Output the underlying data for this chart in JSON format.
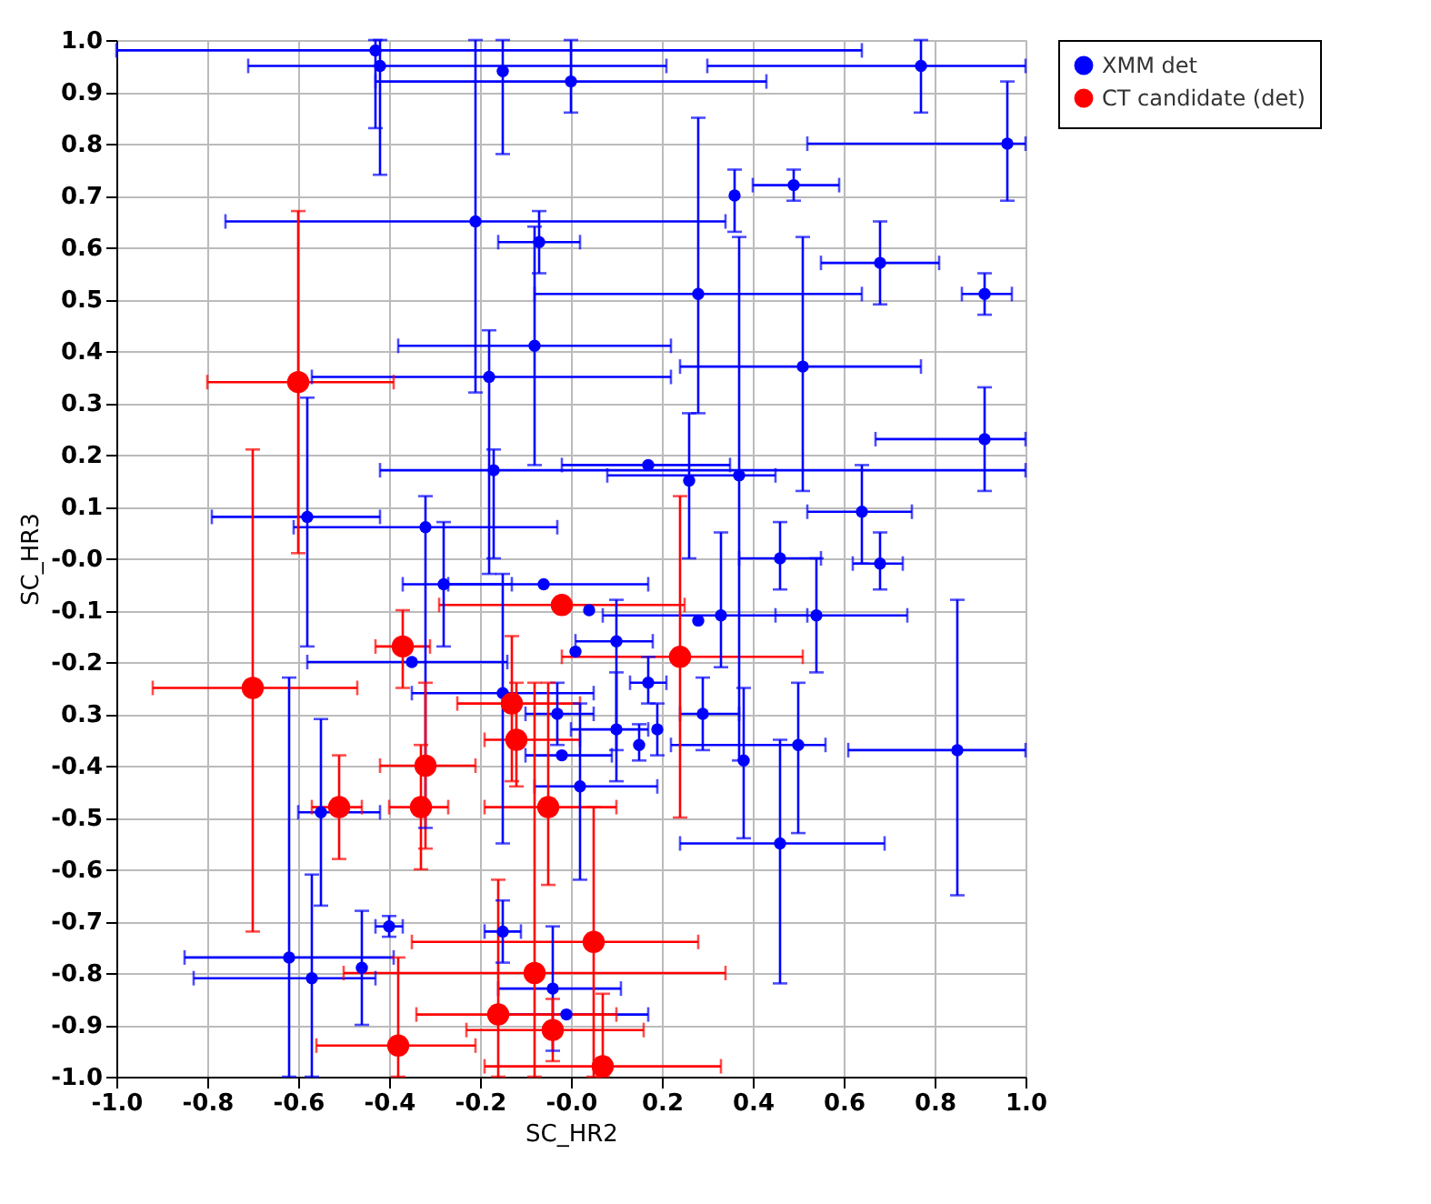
{
  "chart_data": {
    "type": "scatter",
    "xlabel": "SC_HR2",
    "ylabel": "SC_HR3",
    "xlim": [
      -1.0,
      1.0
    ],
    "ylim": [
      -1.0,
      1.0
    ],
    "xticks": [
      {
        "value": -1,
        "label": "-1.0"
      },
      -0.8,
      -0.6,
      -0.4,
      -0.2,
      {
        "value": 0,
        "label": "-0.0"
      },
      0.2,
      0.4,
      0.6,
      0.8,
      {
        "value": 1,
        "label": "1.0"
      }
    ],
    "yticks": [
      {
        "value": -1,
        "label": "-1.0"
      },
      -0.9,
      -0.8,
      -0.7,
      -0.6,
      -0.5,
      -0.4,
      {
        "value": -0.3,
        "label": "0.3"
      },
      -0.2,
      -0.1,
      {
        "value": 0,
        "label": "-0.0"
      },
      0.1,
      0.2,
      0.3,
      0.4,
      0.5,
      0.6,
      0.7,
      0.8,
      0.9,
      {
        "value": 1,
        "label": "1.0"
      }
    ],
    "grid": true,
    "legend": "top right",
    "marker": "circle",
    "series": [
      {
        "name": "XMM det",
        "color": "#0000ff",
        "x": [
          -0.43,
          -0.42,
          -0.15,
          0.0,
          0.77,
          0.96,
          -0.21,
          -0.07,
          0.36,
          0.49,
          0.68,
          0.91,
          0.28,
          -0.08,
          0.51,
          -0.18,
          0.91,
          -0.17,
          0.17,
          0.37,
          0.26,
          0.64,
          0.68,
          0.46,
          -0.58,
          -0.32,
          -0.28,
          -0.06,
          0.04,
          0.1,
          0.01,
          0.33,
          0.28,
          0.54,
          0.17,
          -0.35,
          -0.15,
          -0.03,
          0.29,
          0.1,
          0.15,
          0.19,
          0.38,
          0.5,
          0.85,
          0.46,
          0.02,
          -0.02,
          -0.55,
          -0.4,
          -0.62,
          -0.57,
          -0.46,
          -0.15,
          -0.04,
          -0.01
        ],
        "values": [
          0.98,
          0.95,
          0.94,
          0.92,
          0.95,
          0.8,
          0.65,
          0.61,
          0.7,
          0.72,
          0.57,
          0.51,
          0.51,
          0.41,
          0.37,
          0.35,
          0.23,
          0.17,
          0.18,
          0.16,
          0.15,
          0.09,
          -0.01,
          0.0,
          0.08,
          0.06,
          -0.05,
          -0.05,
          -0.1,
          -0.16,
          -0.18,
          -0.11,
          -0.12,
          -0.11,
          -0.24,
          -0.2,
          -0.26,
          -0.3,
          -0.3,
          -0.33,
          -0.36,
          -0.33,
          -0.39,
          -0.36,
          -0.37,
          -0.55,
          -0.44,
          -0.38,
          -0.49,
          -0.71,
          -0.77,
          -0.81,
          -0.79,
          -0.72,
          -0.83,
          -0.88
        ],
        "xerrors": [
          [
            -1.0,
            0.64
          ],
          [
            -0.71,
            0.21
          ],
          null,
          [
            -0.43,
            0.43
          ],
          [
            0.3,
            1.0
          ],
          [
            0.52,
            1.0
          ],
          [
            -0.76,
            0.34
          ],
          [
            -0.16,
            0.02
          ],
          null,
          [
            0.4,
            0.59
          ],
          [
            0.55,
            0.81
          ],
          [
            0.86,
            0.97
          ],
          [
            -0.08,
            0.64
          ],
          [
            -0.38,
            0.22
          ],
          [
            0.24,
            0.77
          ],
          [
            -0.57,
            0.22
          ],
          [
            0.67,
            1.0
          ],
          [
            -0.42,
            1.0
          ],
          [
            -0.02,
            0.35
          ],
          [
            0.08,
            0.45
          ],
          null,
          [
            0.52,
            0.75
          ],
          [
            0.62,
            0.73
          ],
          [
            0.37,
            0.55
          ],
          [
            -0.79,
            -0.42
          ],
          [
            -0.61,
            -0.03
          ],
          [
            -0.37,
            -0.13
          ],
          [
            -0.27,
            0.17
          ],
          null,
          [
            0.01,
            0.18
          ],
          null,
          [
            0.07,
            0.52
          ],
          null,
          [
            0.45,
            0.74
          ],
          [
            0.13,
            0.21
          ],
          [
            -0.58,
            -0.14
          ],
          [
            -0.35,
            0.05
          ],
          [
            -0.1,
            0.05
          ],
          [
            0.24,
            0.37
          ],
          [
            0.0,
            0.17
          ],
          null,
          null,
          null,
          [
            0.22,
            0.56
          ],
          [
            0.61,
            1.0
          ],
          [
            0.24,
            0.69
          ],
          [
            -0.08,
            0.19
          ],
          [
            -0.1,
            0.09
          ],
          [
            -0.6,
            -0.42
          ],
          [
            -0.43,
            -0.37
          ],
          [
            -0.85,
            -0.39
          ],
          [
            -0.83,
            -0.43
          ],
          null,
          [
            -0.19,
            -0.11
          ],
          [
            -0.16,
            0.11
          ],
          [
            -0.17,
            0.17
          ]
        ],
        "errors": [
          [
            0.83,
            1.0
          ],
          [
            0.74,
            1.0
          ],
          [
            0.78,
            1.0
          ],
          [
            0.86,
            1.0
          ],
          [
            0.86,
            1.0
          ],
          [
            0.69,
            0.92
          ],
          [
            0.32,
            1.0
          ],
          [
            0.55,
            0.67
          ],
          [
            0.63,
            0.75
          ],
          [
            0.69,
            0.75
          ],
          [
            0.49,
            0.65
          ],
          [
            0.47,
            0.55
          ],
          [
            0.28,
            0.85
          ],
          [
            0.18,
            0.64
          ],
          [
            0.13,
            0.62
          ],
          [
            -0.03,
            0.44
          ],
          [
            0.13,
            0.33
          ],
          [
            0.0,
            0.21
          ],
          null,
          [
            -0.39,
            0.62
          ],
          [
            0.0,
            0.28
          ],
          [
            -0.01,
            0.18
          ],
          [
            -0.06,
            0.05
          ],
          [
            -0.06,
            0.07
          ],
          [
            -0.17,
            0.31
          ],
          [
            -0.52,
            0.12
          ],
          [
            -0.17,
            0.07
          ],
          null,
          null,
          [
            -0.37,
            -0.08
          ],
          null,
          [
            -0.21,
            0.05
          ],
          null,
          [
            -0.22,
            0.0
          ],
          [
            -0.28,
            -0.19
          ],
          null,
          [
            -0.55,
            -0.03
          ],
          [
            -0.36,
            -0.24
          ],
          [
            -0.37,
            -0.23
          ],
          [
            -0.43,
            -0.22
          ],
          [
            -0.39,
            -0.32
          ],
          [
            -0.38,
            -0.28
          ],
          [
            -0.54,
            -0.25
          ],
          [
            -0.53,
            -0.24
          ],
          [
            -0.65,
            -0.08
          ],
          [
            -0.82,
            -0.35
          ],
          [
            -0.62,
            -0.28
          ],
          null,
          [
            -0.67,
            -0.31
          ],
          [
            -0.73,
            -0.69
          ],
          [
            -1.0,
            -0.23
          ],
          [
            -1.0,
            -0.61
          ],
          [
            -0.9,
            -0.68
          ],
          [
            -0.78,
            -0.66
          ],
          [
            -0.95,
            -0.71
          ],
          null
        ]
      },
      {
        "name": "CT candidate (det)",
        "color": "#ff0000",
        "x": [
          -0.6,
          -0.7,
          -0.37,
          -0.51,
          -0.32,
          -0.33,
          -0.13,
          -0.12,
          -0.05,
          -0.02,
          0.24,
          0.05,
          -0.08,
          -0.16,
          -0.04,
          -0.38,
          0.07
        ],
        "values": [
          0.34,
          -0.25,
          -0.17,
          -0.48,
          -0.4,
          -0.48,
          -0.28,
          -0.35,
          -0.48,
          -0.09,
          -0.19,
          -0.74,
          -0.8,
          -0.88,
          -0.91,
          -0.94,
          -0.98
        ],
        "xerrors": [
          [
            -0.8,
            -0.39
          ],
          [
            -0.92,
            -0.47
          ],
          [
            -0.43,
            -0.31
          ],
          [
            -0.57,
            -0.46
          ],
          [
            -0.42,
            -0.21
          ],
          [
            -0.4,
            -0.27
          ],
          [
            -0.25,
            0.02
          ],
          [
            -0.19,
            0.02
          ],
          [
            -0.19,
            0.1
          ],
          [
            -0.29,
            0.25
          ],
          [
            -0.02,
            0.51
          ],
          [
            -0.35,
            0.28
          ],
          [
            -0.5,
            0.34
          ],
          [
            -0.34,
            0.1
          ],
          [
            -0.23,
            0.16
          ],
          [
            -0.56,
            -0.21
          ],
          [
            -0.19,
            0.33
          ]
        ],
        "errors": [
          [
            0.01,
            0.67
          ],
          [
            -0.72,
            0.21
          ],
          [
            -0.25,
            -0.1
          ],
          [
            -0.58,
            -0.38
          ],
          [
            -0.56,
            -0.24
          ],
          [
            -0.6,
            -0.36
          ],
          [
            -0.43,
            -0.15
          ],
          [
            -0.44,
            -0.24
          ],
          [
            -0.63,
            -0.24
          ],
          null,
          [
            -0.5,
            0.12
          ],
          [
            -1.0,
            -0.48
          ],
          [
            -1.0,
            -0.24
          ],
          [
            -1.0,
            -0.62
          ],
          [
            -0.97,
            -0.85
          ],
          [
            -1.0,
            -0.77
          ],
          [
            -1.0,
            -0.84
          ]
        ]
      }
    ]
  }
}
